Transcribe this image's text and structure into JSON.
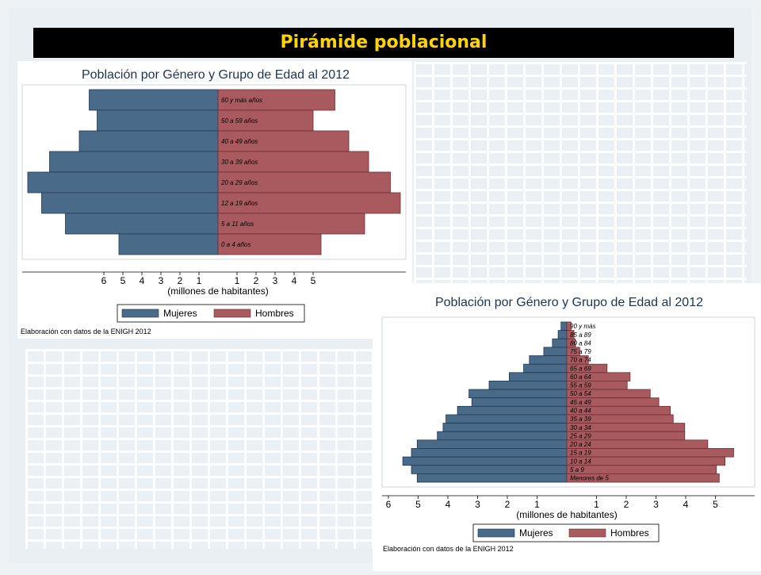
{
  "slide": {
    "title": "Pirámide poblacional"
  },
  "chart_data": [
    {
      "type": "bar",
      "orientation": "horizontal-population-pyramid",
      "title": "Población por Género y Grupo de Edad al 2012",
      "xlabel": "(millones de habitantes)",
      "x_ticks": [
        "6",
        "5",
        "4",
        "3",
        "2",
        "1",
        "1",
        "2",
        "3",
        "4",
        "5"
      ],
      "categories": [
        "60 y más años",
        "50 a 59 años",
        "40 a 49 años",
        "30 a 39 años",
        "20 a 29 años",
        "12 a 19 años",
        "5 a 11 años",
        "0 a 4 años"
      ],
      "series": [
        {
          "name": "Mujeres",
          "color": "#4a6a8a",
          "values": [
            6.5,
            6.1,
            7.0,
            8.5,
            9.6,
            8.9,
            7.7,
            5.0
          ]
        },
        {
          "name": "Hombres",
          "color": "#a85a5f",
          "values": [
            5.9,
            4.8,
            6.6,
            7.6,
            8.7,
            9.2,
            7.4,
            5.2
          ]
        }
      ],
      "xlim": [
        -9.6,
        9.6
      ],
      "legend_position": "bottom",
      "note": "Elaboración con datos de la ENIGH 2012"
    },
    {
      "type": "bar",
      "orientation": "horizontal-population-pyramid",
      "title": "Población por Género y Grupo de Edad al 2012",
      "xlabel": "(millones de habitantes)",
      "x_ticks": [
        "6",
        "5",
        "4",
        "3",
        "2",
        "1",
        "1",
        "2",
        "3",
        "4",
        "5"
      ],
      "categories": [
        "90 y más",
        "85 a 89",
        "80 a 84",
        "75 a 79",
        "70 a 74",
        "65 a 69",
        "60 a 64",
        "55 a 59",
        "50 a 54",
        "45 a 49",
        "40 a 44",
        "35 a 39",
        "30 a 34",
        "25 a 29",
        "20 a 24",
        "15 a 19",
        "10 a 14",
        "5 a 9",
        "Menores de 5"
      ],
      "series": [
        {
          "name": "Mujeres",
          "color": "#4a6a8a",
          "values": [
            0.2,
            0.3,
            0.5,
            0.8,
            1.3,
            1.5,
            2.0,
            2.7,
            3.4,
            3.3,
            3.8,
            4.2,
            4.3,
            4.5,
            5.2,
            5.4,
            5.7,
            5.4,
            5.2
          ]
        },
        {
          "name": "Hombres",
          "color": "#a85a5f",
          "values": [
            0.15,
            0.25,
            0.3,
            0.45,
            0.75,
            1.4,
            2.2,
            2.1,
            2.9,
            3.2,
            3.6,
            3.7,
            4.1,
            4.1,
            4.9,
            5.8,
            5.5,
            5.2,
            5.3
          ]
        }
      ],
      "xlim": [
        -6.2,
        6.2
      ],
      "legend_position": "bottom",
      "note": "Elaboración con datos de la ENIGH 2012"
    }
  ]
}
